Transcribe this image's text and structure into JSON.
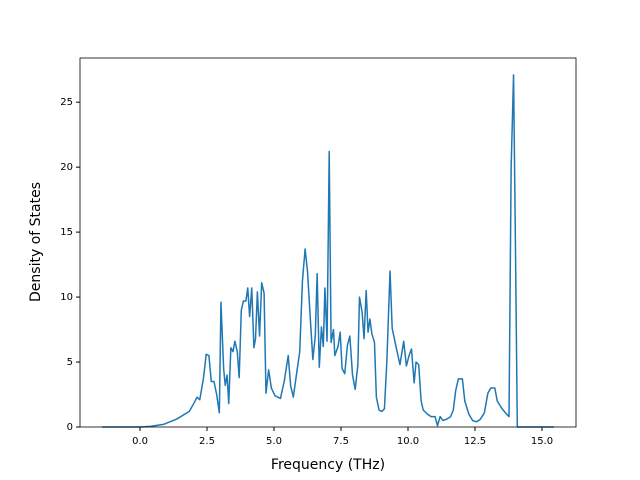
{
  "chart_data": {
    "type": "line",
    "xlabel": "Frequency (THz)",
    "ylabel": "Density of States",
    "xlim": [
      -2.24,
      16.27
    ],
    "ylim": [
      0,
      28.4
    ],
    "xticks": [
      {
        "value": 0,
        "label": "0.0"
      },
      {
        "value": 2.5,
        "label": "2.5"
      },
      {
        "value": 5,
        "label": "5.0"
      },
      {
        "value": 7.5,
        "label": "7.5"
      },
      {
        "value": 10,
        "label": "10.0"
      },
      {
        "value": 12.5,
        "label": "12.5"
      },
      {
        "value": 15,
        "label": "15.0"
      }
    ],
    "yticks": [
      0,
      5,
      10,
      15,
      20,
      25
    ],
    "grid": false,
    "series": [
      {
        "color": "#1f77b4",
        "x": [
          -1.42,
          0,
          0.39,
          0.87,
          1.36,
          1.84,
          2.03,
          2.13,
          2.23,
          2.37,
          2.47,
          2.57,
          2.66,
          2.76,
          2.86,
          2.96,
          3.02,
          3.12,
          3.18,
          3.25,
          3.31,
          3.39,
          3.47,
          3.54,
          3.63,
          3.7,
          3.78,
          3.86,
          3.95,
          4.02,
          4.09,
          4.17,
          4.25,
          4.31,
          4.38,
          4.46,
          4.54,
          4.63,
          4.7,
          4.8,
          4.9,
          5.04,
          5.24,
          5.38,
          5.53,
          5.62,
          5.72,
          5.87,
          5.96,
          6.06,
          6.16,
          6.25,
          6.35,
          6.45,
          6.54,
          6.61,
          6.69,
          6.77,
          6.84,
          6.9,
          6.98,
          7.06,
          7.13,
          7.22,
          7.27,
          7.39,
          7.47,
          7.54,
          7.64,
          7.74,
          7.83,
          7.93,
          8.03,
          8.13,
          8.19,
          8.29,
          8.36,
          8.44,
          8.51,
          8.58,
          8.65,
          8.75,
          8.82,
          8.92,
          9.02,
          9.12,
          9.21,
          9.33,
          9.41,
          9.52,
          9.7,
          9.84,
          9.94,
          10.04,
          10.13,
          10.23,
          10.3,
          10.4,
          10.49,
          10.57,
          10.72,
          10.86,
          11.01,
          11.1,
          11.2,
          11.3,
          11.44,
          11.59,
          11.69,
          11.78,
          11.88,
          12.03,
          12.12,
          12.27,
          12.41,
          12.56,
          12.7,
          12.85,
          12.98,
          13.09,
          13.24,
          13.33,
          13.48,
          13.63,
          13.77,
          13.85,
          13.94,
          14.01,
          14.08,
          15.45
        ],
        "values": [
          0,
          0,
          0.05,
          0.2,
          0.6,
          1.2,
          1.9,
          2.3,
          2.1,
          3.8,
          5.6,
          5.5,
          3.5,
          3.5,
          2.5,
          1.1,
          9.6,
          4.5,
          3.2,
          4.0,
          1.8,
          6.1,
          5.8,
          6.6,
          5.8,
          3.8,
          9.0,
          9.7,
          9.7,
          10.7,
          8.5,
          10.7,
          6.1,
          6.8,
          10.4,
          7.0,
          11.1,
          10.3,
          2.6,
          4.4,
          3.0,
          2.4,
          2.2,
          3.5,
          5.5,
          3.2,
          2.3,
          4.5,
          5.8,
          11.2,
          13.7,
          12.0,
          8.5,
          5.2,
          7.0,
          11.8,
          4.6,
          7.7,
          6.2,
          10.7,
          6.6,
          21.2,
          6.5,
          7.5,
          5.5,
          6.2,
          7.3,
          4.5,
          4.1,
          6.3,
          7.0,
          4.0,
          2.9,
          4.8,
          10.0,
          8.8,
          6.8,
          10.5,
          7.3,
          8.3,
          7.2,
          6.5,
          2.3,
          1.3,
          1.2,
          1.4,
          5.0,
          12.0,
          7.6,
          6.5,
          4.8,
          6.6,
          4.7,
          5.5,
          6.0,
          3.4,
          5.0,
          4.8,
          2.0,
          1.3,
          1.0,
          0.8,
          0.8,
          0.1,
          0.8,
          0.5,
          0.6,
          0.8,
          1.3,
          2.8,
          3.7,
          3.7,
          2.0,
          1.0,
          0.5,
          0.4,
          0.6,
          1.1,
          2.6,
          3.0,
          3.0,
          2.0,
          1.5,
          1.1,
          0.8,
          20,
          27.1,
          14,
          0,
          0
        ]
      }
    ]
  }
}
